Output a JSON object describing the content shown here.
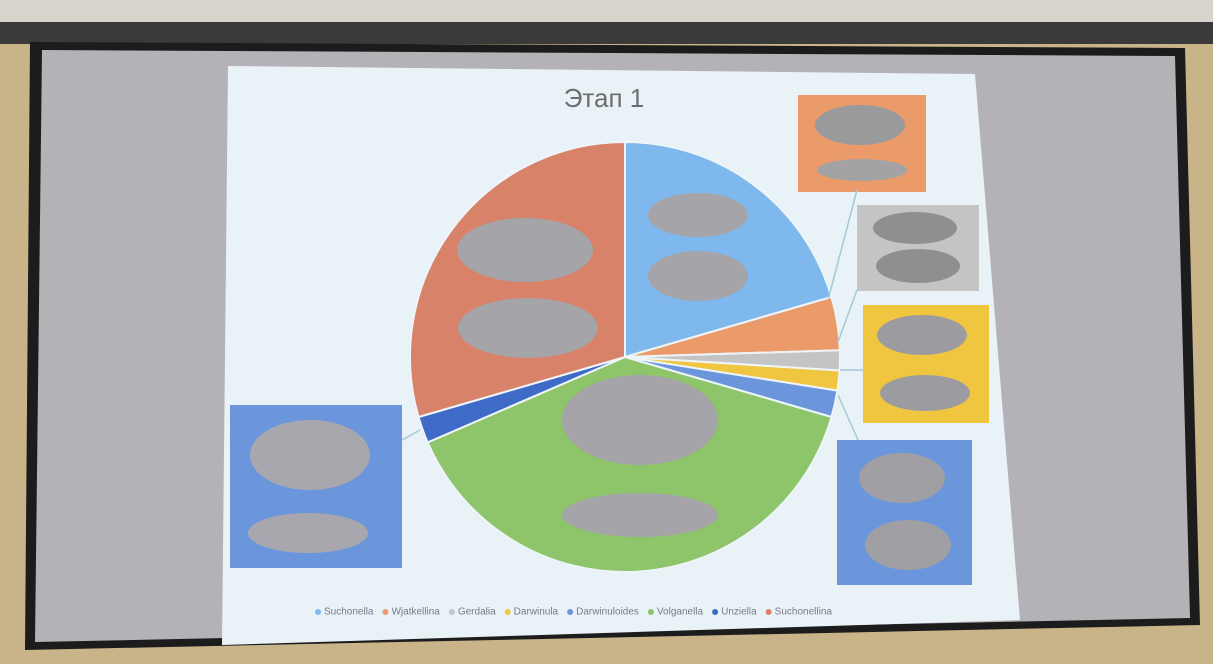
{
  "chart_data": {
    "type": "pie",
    "title": "Этап 1",
    "categories": [
      "Suchonella",
      "Wjatkellina",
      "Gerdalia",
      "Darwinula",
      "Darwinuloides",
      "Volganella",
      "Unziella",
      "Suchonellina"
    ],
    "values": [
      20.5,
      4,
      1.5,
      1.5,
      2,
      39,
      2,
      29.5
    ],
    "colors": [
      "#7fb8ec",
      "#eb9a6a",
      "#c4c4c4",
      "#f0c640",
      "#6c96dc",
      "#8ec46a",
      "#3e6bc8",
      "#d9826a"
    ]
  }
}
